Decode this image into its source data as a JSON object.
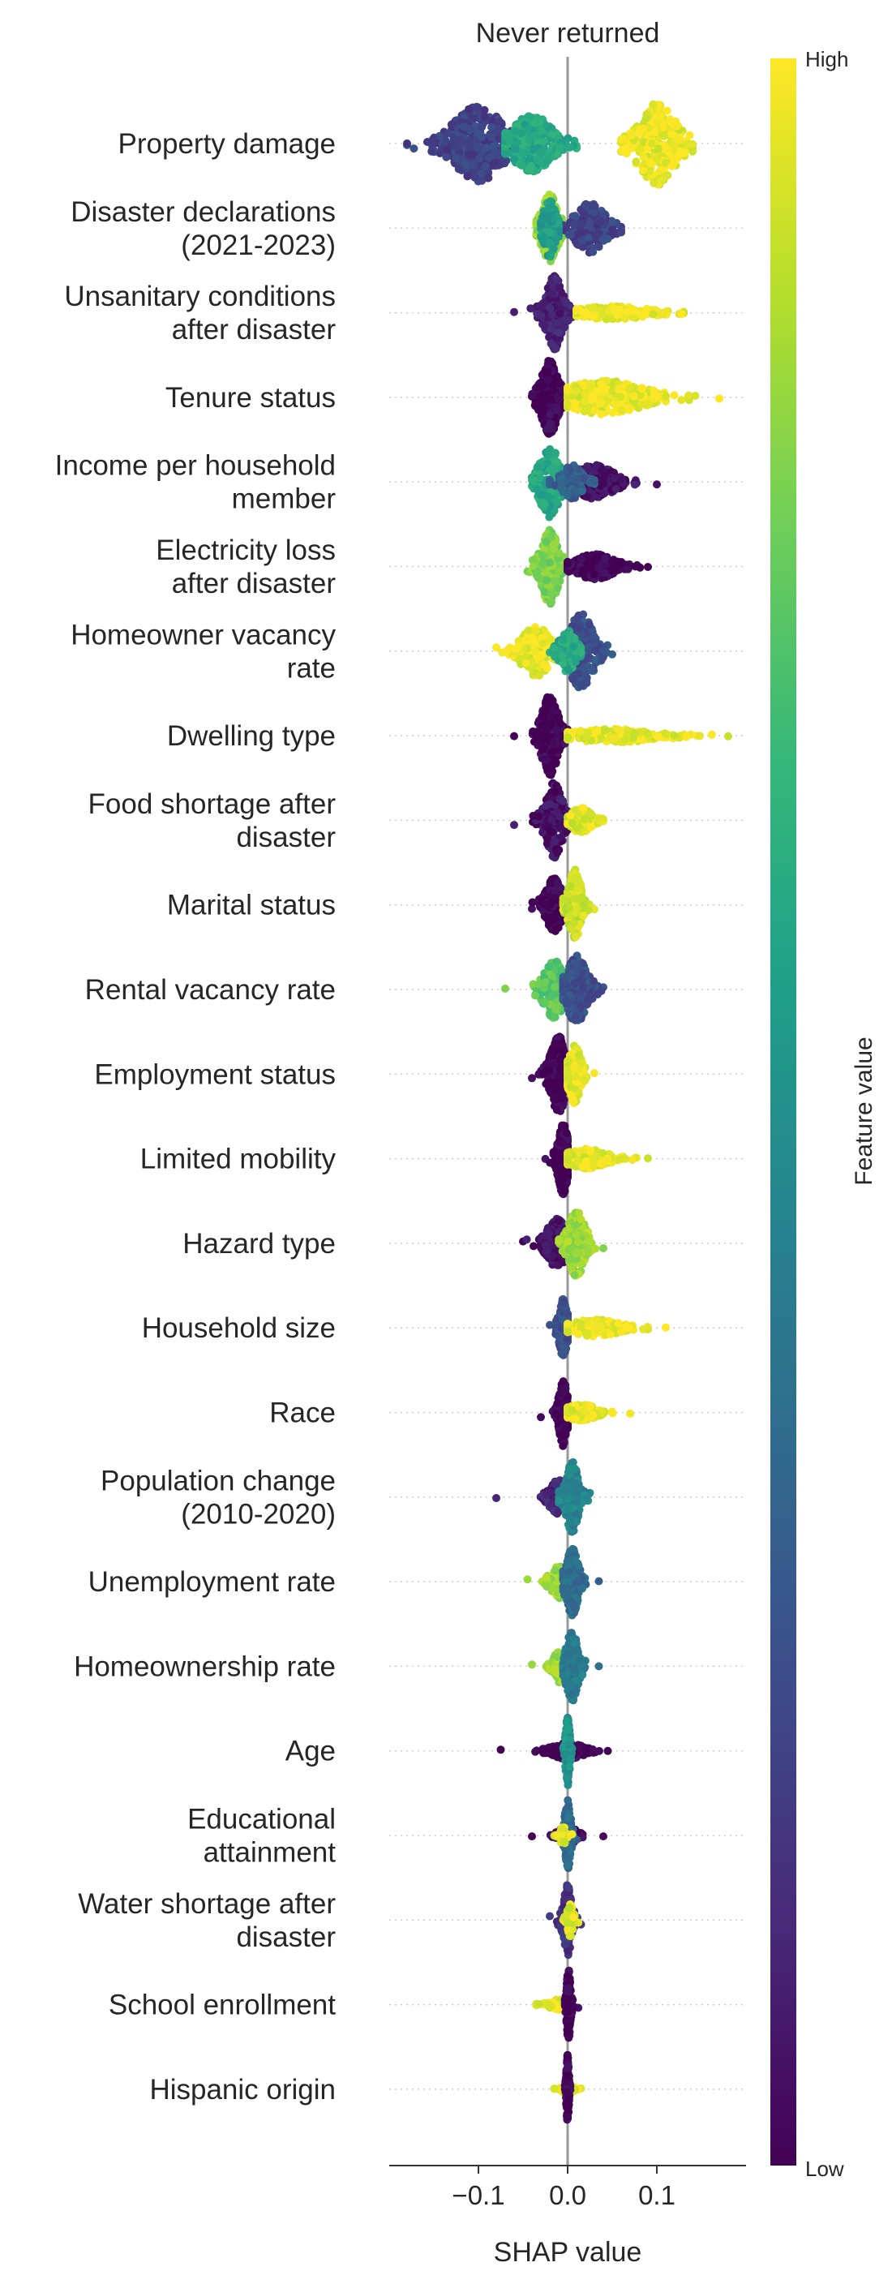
{
  "chart_data": {
    "type": "scatter",
    "title": "Never returned",
    "xlabel": "SHAP value",
    "xlim": [
      -0.2,
      0.2
    ],
    "xticks": [
      -0.1,
      0.0,
      0.1
    ],
    "xtick_labels": [
      "−0.1",
      "0.0",
      "0.1"
    ],
    "colorbar": {
      "label": "Feature value",
      "high_label": "High",
      "low_label": "Low",
      "colormap": "viridis",
      "stops": [
        "#440154",
        "#482878",
        "#3e4a89",
        "#31688e",
        "#26828e",
        "#1f9e89",
        "#35b779",
        "#6ece58",
        "#b5de2b",
        "#fde725"
      ]
    },
    "grid": false,
    "features": [
      {
        "label": [
          "Property damage"
        ],
        "clusters": [
          {
            "min": -0.18,
            "max": -0.05,
            "center": -0.1,
            "spread": 0.025,
            "half_height": 0.45,
            "color": 0.2,
            "n": 380
          },
          {
            "min": -0.07,
            "max": 0.01,
            "center": -0.04,
            "spread": 0.02,
            "half_height": 0.34,
            "color": 0.6,
            "n": 280
          },
          {
            "min": 0.06,
            "max": 0.14,
            "center": 0.1,
            "spread": 0.018,
            "half_height": 0.5,
            "color": 0.97,
            "n": 260
          }
        ]
      },
      {
        "label": [
          "Disaster declarations",
          "(2021-2023)"
        ],
        "clusters": [
          {
            "min": -0.035,
            "max": -0.005,
            "center": -0.02,
            "spread": 0.008,
            "half_height": 0.4,
            "color": 0.85,
            "n": 200
          },
          {
            "min": -0.01,
            "max": 0.06,
            "center": 0.025,
            "spread": 0.015,
            "half_height": 0.3,
            "color": 0.2,
            "n": 200
          },
          {
            "min": -0.03,
            "max": -0.01,
            "center": -0.02,
            "spread": 0.006,
            "half_height": 0.35,
            "color": 0.55,
            "n": 100
          }
        ]
      },
      {
        "label": [
          "Unsanitary conditions",
          "after disaster"
        ],
        "clusters": [
          {
            "min": -0.06,
            "max": 0.005,
            "center": -0.015,
            "spread": 0.008,
            "half_height": 0.45,
            "color": 0.1,
            "n": 260
          },
          {
            "min": 0.01,
            "max": 0.13,
            "center": 0.05,
            "spread": 0.035,
            "half_height": 0.08,
            "color": 0.97,
            "n": 220
          }
        ]
      },
      {
        "label": [
          "Tenure status"
        ],
        "clusters": [
          {
            "min": -0.04,
            "max": 0.0,
            "center": -0.02,
            "spread": 0.008,
            "half_height": 0.45,
            "color": 0.0,
            "n": 300
          },
          {
            "min": 0.0,
            "max": 0.17,
            "center": 0.04,
            "spread": 0.04,
            "half_height": 0.2,
            "color": 0.97,
            "n": 300
          }
        ]
      },
      {
        "label": [
          "Income per household",
          "member"
        ],
        "clusters": [
          {
            "min": -0.04,
            "max": 0.005,
            "center": -0.02,
            "spread": 0.01,
            "half_height": 0.42,
            "color": 0.6,
            "n": 200
          },
          {
            "min": 0.0,
            "max": 0.1,
            "center": 0.03,
            "spread": 0.02,
            "half_height": 0.2,
            "color": 0.05,
            "n": 240
          },
          {
            "min": -0.02,
            "max": 0.03,
            "center": 0.005,
            "spread": 0.01,
            "half_height": 0.2,
            "color": 0.3,
            "n": 120
          }
        ]
      },
      {
        "label": [
          "Electricity loss",
          "after disaster"
        ],
        "clusters": [
          {
            "min": -0.045,
            "max": -0.005,
            "center": -0.02,
            "spread": 0.008,
            "half_height": 0.45,
            "color": 0.8,
            "n": 250
          },
          {
            "min": 0.0,
            "max": 0.09,
            "center": 0.03,
            "spread": 0.02,
            "half_height": 0.15,
            "color": 0.0,
            "n": 200
          }
        ]
      },
      {
        "label": [
          "Homeowner vacancy",
          "rate"
        ],
        "clusters": [
          {
            "min": -0.08,
            "max": -0.01,
            "center": -0.035,
            "spread": 0.015,
            "half_height": 0.3,
            "color": 0.97,
            "n": 220
          },
          {
            "min": -0.01,
            "max": 0.05,
            "center": 0.015,
            "spread": 0.012,
            "half_height": 0.45,
            "color": 0.25,
            "n": 220
          },
          {
            "min": -0.02,
            "max": 0.015,
            "center": 0.0,
            "spread": 0.008,
            "half_height": 0.25,
            "color": 0.6,
            "n": 100
          }
        ]
      },
      {
        "label": [
          "Dwelling type"
        ],
        "clusters": [
          {
            "min": -0.06,
            "max": 0.0,
            "center": -0.02,
            "spread": 0.008,
            "half_height": 0.48,
            "color": 0.0,
            "n": 300
          },
          {
            "min": 0.0,
            "max": 0.18,
            "center": 0.05,
            "spread": 0.045,
            "half_height": 0.08,
            "color": 0.97,
            "n": 240
          }
        ]
      },
      {
        "label": [
          "Food shortage after",
          "disaster"
        ],
        "clusters": [
          {
            "min": -0.06,
            "max": 0.0,
            "center": -0.015,
            "spread": 0.008,
            "half_height": 0.45,
            "color": 0.05,
            "n": 230
          },
          {
            "min": 0.0,
            "max": 0.04,
            "center": 0.015,
            "spread": 0.01,
            "half_height": 0.15,
            "color": 0.95,
            "n": 160
          }
        ]
      },
      {
        "label": [
          "Marital status"
        ],
        "clusters": [
          {
            "min": -0.04,
            "max": 0.0,
            "center": -0.015,
            "spread": 0.008,
            "half_height": 0.32,
            "color": 0.0,
            "n": 260
          },
          {
            "min": -0.005,
            "max": 0.03,
            "center": 0.008,
            "spread": 0.006,
            "half_height": 0.42,
            "color": 0.92,
            "n": 220
          }
        ]
      },
      {
        "label": [
          "Rental vacancy rate"
        ],
        "clusters": [
          {
            "min": -0.07,
            "max": 0.0,
            "center": -0.015,
            "spread": 0.01,
            "half_height": 0.35,
            "color": 0.75,
            "n": 220
          },
          {
            "min": -0.005,
            "max": 0.04,
            "center": 0.01,
            "spread": 0.01,
            "half_height": 0.4,
            "color": 0.25,
            "n": 240
          }
        ]
      },
      {
        "label": [
          "Employment status"
        ],
        "clusters": [
          {
            "min": -0.04,
            "max": 0.0,
            "center": -0.01,
            "spread": 0.008,
            "half_height": 0.45,
            "color": 0.0,
            "n": 280
          },
          {
            "min": 0.0,
            "max": 0.03,
            "center": 0.008,
            "spread": 0.006,
            "half_height": 0.35,
            "color": 0.97,
            "n": 240
          }
        ]
      },
      {
        "label": [
          "Limited mobility"
        ],
        "clusters": [
          {
            "min": -0.025,
            "max": 0.0,
            "center": -0.005,
            "spread": 0.005,
            "half_height": 0.42,
            "color": 0.0,
            "n": 240
          },
          {
            "min": 0.0,
            "max": 0.09,
            "center": 0.02,
            "spread": 0.02,
            "half_height": 0.12,
            "color": 0.97,
            "n": 200
          }
        ]
      },
      {
        "label": [
          "Hazard type"
        ],
        "clusters": [
          {
            "min": -0.05,
            "max": 0.0,
            "center": -0.012,
            "spread": 0.01,
            "half_height": 0.3,
            "color": 0.05,
            "n": 220
          },
          {
            "min": -0.01,
            "max": 0.04,
            "center": 0.01,
            "spread": 0.008,
            "half_height": 0.4,
            "color": 0.85,
            "n": 200
          }
        ]
      },
      {
        "label": [
          "Household size"
        ],
        "clusters": [
          {
            "min": -0.02,
            "max": 0.0,
            "center": -0.005,
            "spread": 0.004,
            "half_height": 0.35,
            "color": 0.25,
            "n": 180
          },
          {
            "min": 0.0,
            "max": 0.11,
            "center": 0.03,
            "spread": 0.025,
            "half_height": 0.1,
            "color": 0.97,
            "n": 200
          }
        ]
      },
      {
        "label": [
          "Race"
        ],
        "clusters": [
          {
            "min": -0.03,
            "max": 0.0,
            "center": -0.005,
            "spread": 0.004,
            "half_height": 0.4,
            "color": 0.0,
            "n": 200
          },
          {
            "min": 0.0,
            "max": 0.07,
            "center": 0.015,
            "spread": 0.015,
            "half_height": 0.1,
            "color": 0.97,
            "n": 160
          }
        ]
      },
      {
        "label": [
          "Population change",
          "(2010-2020)"
        ],
        "clusters": [
          {
            "min": -0.08,
            "max": 0.0,
            "center": -0.01,
            "spread": 0.01,
            "half_height": 0.2,
            "color": 0.1,
            "n": 150
          },
          {
            "min": -0.01,
            "max": 0.025,
            "center": 0.005,
            "spread": 0.006,
            "half_height": 0.42,
            "color": 0.45,
            "n": 220
          }
        ]
      },
      {
        "label": [
          "Unemployment rate"
        ],
        "clusters": [
          {
            "min": -0.045,
            "max": 0.0,
            "center": -0.01,
            "spread": 0.008,
            "half_height": 0.2,
            "color": 0.85,
            "n": 120
          },
          {
            "min": -0.005,
            "max": 0.035,
            "center": 0.005,
            "spread": 0.006,
            "half_height": 0.4,
            "color": 0.35,
            "n": 220
          }
        ]
      },
      {
        "label": [
          "Homeownership rate"
        ],
        "clusters": [
          {
            "min": -0.04,
            "max": 0.0,
            "center": -0.008,
            "spread": 0.007,
            "half_height": 0.2,
            "color": 0.85,
            "n": 110
          },
          {
            "min": -0.005,
            "max": 0.035,
            "center": 0.005,
            "spread": 0.006,
            "half_height": 0.42,
            "color": 0.4,
            "n": 220
          }
        ]
      },
      {
        "label": [
          "Age"
        ],
        "clusters": [
          {
            "min": -0.075,
            "max": 0.045,
            "center": 0.0,
            "spread": 0.015,
            "half_height": 0.1,
            "color": 0.0,
            "n": 150
          },
          {
            "min": -0.005,
            "max": 0.005,
            "center": 0.0,
            "spread": 0.002,
            "half_height": 0.42,
            "color": 0.5,
            "n": 160
          }
        ]
      },
      {
        "label": [
          "Educational",
          "attainment"
        ],
        "clusters": [
          {
            "min": -0.04,
            "max": 0.04,
            "center": 0.0,
            "spread": 0.008,
            "half_height": 0.12,
            "color": 0.0,
            "n": 140
          },
          {
            "min": -0.01,
            "max": 0.01,
            "center": 0.0,
            "spread": 0.003,
            "half_height": 0.42,
            "color": 0.35,
            "n": 160
          },
          {
            "min": -0.015,
            "max": 0.005,
            "center": -0.005,
            "spread": 0.004,
            "half_height": 0.1,
            "color": 0.95,
            "n": 40
          }
        ]
      },
      {
        "label": [
          "Water shortage after",
          "disaster"
        ],
        "clusters": [
          {
            "min": -0.02,
            "max": 0.015,
            "center": 0.0,
            "spread": 0.004,
            "half_height": 0.42,
            "color": 0.15,
            "n": 180
          },
          {
            "min": -0.005,
            "max": 0.012,
            "center": 0.003,
            "spread": 0.003,
            "half_height": 0.2,
            "color": 0.95,
            "n": 50
          }
        ]
      },
      {
        "label": [
          "School enrollment"
        ],
        "clusters": [
          {
            "min": -0.035,
            "max": 0.0,
            "center": -0.01,
            "spread": 0.01,
            "half_height": 0.06,
            "color": 0.97,
            "n": 100
          },
          {
            "min": -0.003,
            "max": 0.012,
            "center": 0.001,
            "spread": 0.002,
            "half_height": 0.42,
            "color": 0.0,
            "n": 150
          }
        ]
      },
      {
        "label": [
          "Hispanic origin"
        ],
        "clusters": [
          {
            "min": -0.015,
            "max": 0.015,
            "center": 0.0,
            "spread": 0.005,
            "half_height": 0.06,
            "color": 0.97,
            "n": 90
          },
          {
            "min": -0.003,
            "max": 0.003,
            "center": 0.0,
            "spread": 0.0012,
            "half_height": 0.42,
            "color": 0.0,
            "n": 150
          }
        ]
      }
    ]
  }
}
